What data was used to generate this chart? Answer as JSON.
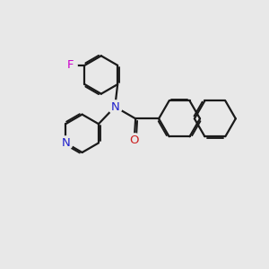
{
  "bg_color": "#e8e8e8",
  "bond_color": "#1a1a1a",
  "N_color": "#2020cc",
  "O_color": "#cc2020",
  "F_color": "#cc00cc",
  "line_width": 1.6,
  "font_size": 9.5,
  "xlim": [
    0,
    10
  ],
  "ylim": [
    0,
    10
  ]
}
